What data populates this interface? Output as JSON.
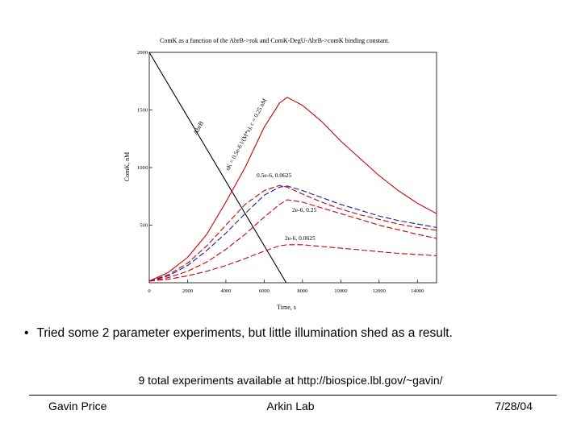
{
  "chart_data": {
    "type": "line",
    "title": "ComK as a function of the AbrB->rok and ComK-DegU-AbrB->comK binding constant.",
    "xlabel": "Time, s",
    "ylabel": "ComK, nM",
    "xlim": [
      0,
      15000
    ],
    "ylim": [
      0,
      2000
    ],
    "x_ticks": [
      "0",
      "2000",
      "4000",
      "6000",
      "8000",
      "10000",
      "12000",
      "14000"
    ],
    "y_ticks": [
      "2000",
      "1500",
      "1000",
      "500"
    ],
    "grid": false,
    "series": [
      {
        "name": "AbrB",
        "color": "#000000",
        "dash": "solid",
        "x": [
          0,
          7150
        ],
        "y": [
          2000,
          0
        ]
      },
      {
        "name": "sK = 0.5e-6 l/(M*s), c = 0.25 nM",
        "color": "#cc0000",
        "dash": "solid",
        "x": [
          0,
          1000,
          2000,
          3000,
          4000,
          5000,
          6000,
          6800,
          7200,
          8000,
          9000,
          10000,
          11000,
          12000,
          13000,
          14000,
          15000
        ],
        "y": [
          15,
          90,
          220,
          420,
          700,
          1000,
          1350,
          1560,
          1610,
          1540,
          1400,
          1230,
          1080,
          930,
          800,
          690,
          600
        ]
      },
      {
        "name": "0.5e-6, 0.0625",
        "color": "#cc0000",
        "dash": "dashed",
        "x": [
          0,
          1000,
          2000,
          3000,
          4000,
          5000,
          6000,
          6800,
          7200,
          8000,
          9000,
          10000,
          11000,
          12000,
          13000,
          14000,
          15000
        ],
        "y": [
          15,
          70,
          170,
          320,
          500,
          680,
          800,
          845,
          830,
          770,
          700,
          640,
          590,
          550,
          510,
          480,
          455
        ]
      },
      {
        "name": "blue",
        "color": "#1a1aaa",
        "dash": "dashed",
        "x": [
          0,
          1000,
          2000,
          3000,
          4000,
          5000,
          6000,
          6800,
          7200,
          8000,
          9000,
          10000,
          11000,
          12000,
          13000,
          14000,
          15000
        ],
        "y": [
          15,
          60,
          150,
          280,
          430,
          600,
          760,
          830,
          840,
          800,
          740,
          680,
          630,
          580,
          540,
          510,
          480
        ]
      },
      {
        "name": "2e-6, 0.25",
        "color": "#cc0000",
        "dash": "dashed",
        "x": [
          0,
          1000,
          2000,
          3000,
          4000,
          5000,
          6000,
          6800,
          7200,
          8000,
          9000,
          10000,
          11000,
          12000,
          13000,
          14000,
          15000
        ],
        "y": [
          15,
          45,
          100,
          180,
          290,
          420,
          570,
          680,
          720,
          700,
          650,
          600,
          550,
          500,
          460,
          420,
          385
        ]
      },
      {
        "name": "2e-6, 0.0625",
        "color": "#cc0000",
        "dash": "dashed",
        "x": [
          0,
          1000,
          2000,
          3000,
          4000,
          5000,
          6000,
          6800,
          7200,
          8000,
          9000,
          10000,
          11000,
          12000,
          13000,
          14000,
          15000
        ],
        "y": [
          15,
          30,
          60,
          100,
          150,
          210,
          275,
          320,
          330,
          330,
          315,
          300,
          285,
          270,
          255,
          245,
          235
        ]
      }
    ]
  },
  "labels": {
    "abrb": "AbrB",
    "top_curve": "sK = 0.5e-6 l/(M*s), c = 0.25 nM",
    "dashed_upper": "0.5e-6, 0.0625",
    "dashed_mid": "2e-6, 0.25",
    "dashed_low": "2e-6, 0.0625"
  },
  "text": {
    "bullet": "Tried some 2 parameter experiments, but little illumination shed as a result.",
    "bullet_marker": "•",
    "note": "9 total experiments available at http://biospice.lbl.gov/~gavin/"
  },
  "footer": {
    "left": "Gavin Price",
    "center": "Arkin Lab",
    "right": "7/28/04"
  }
}
